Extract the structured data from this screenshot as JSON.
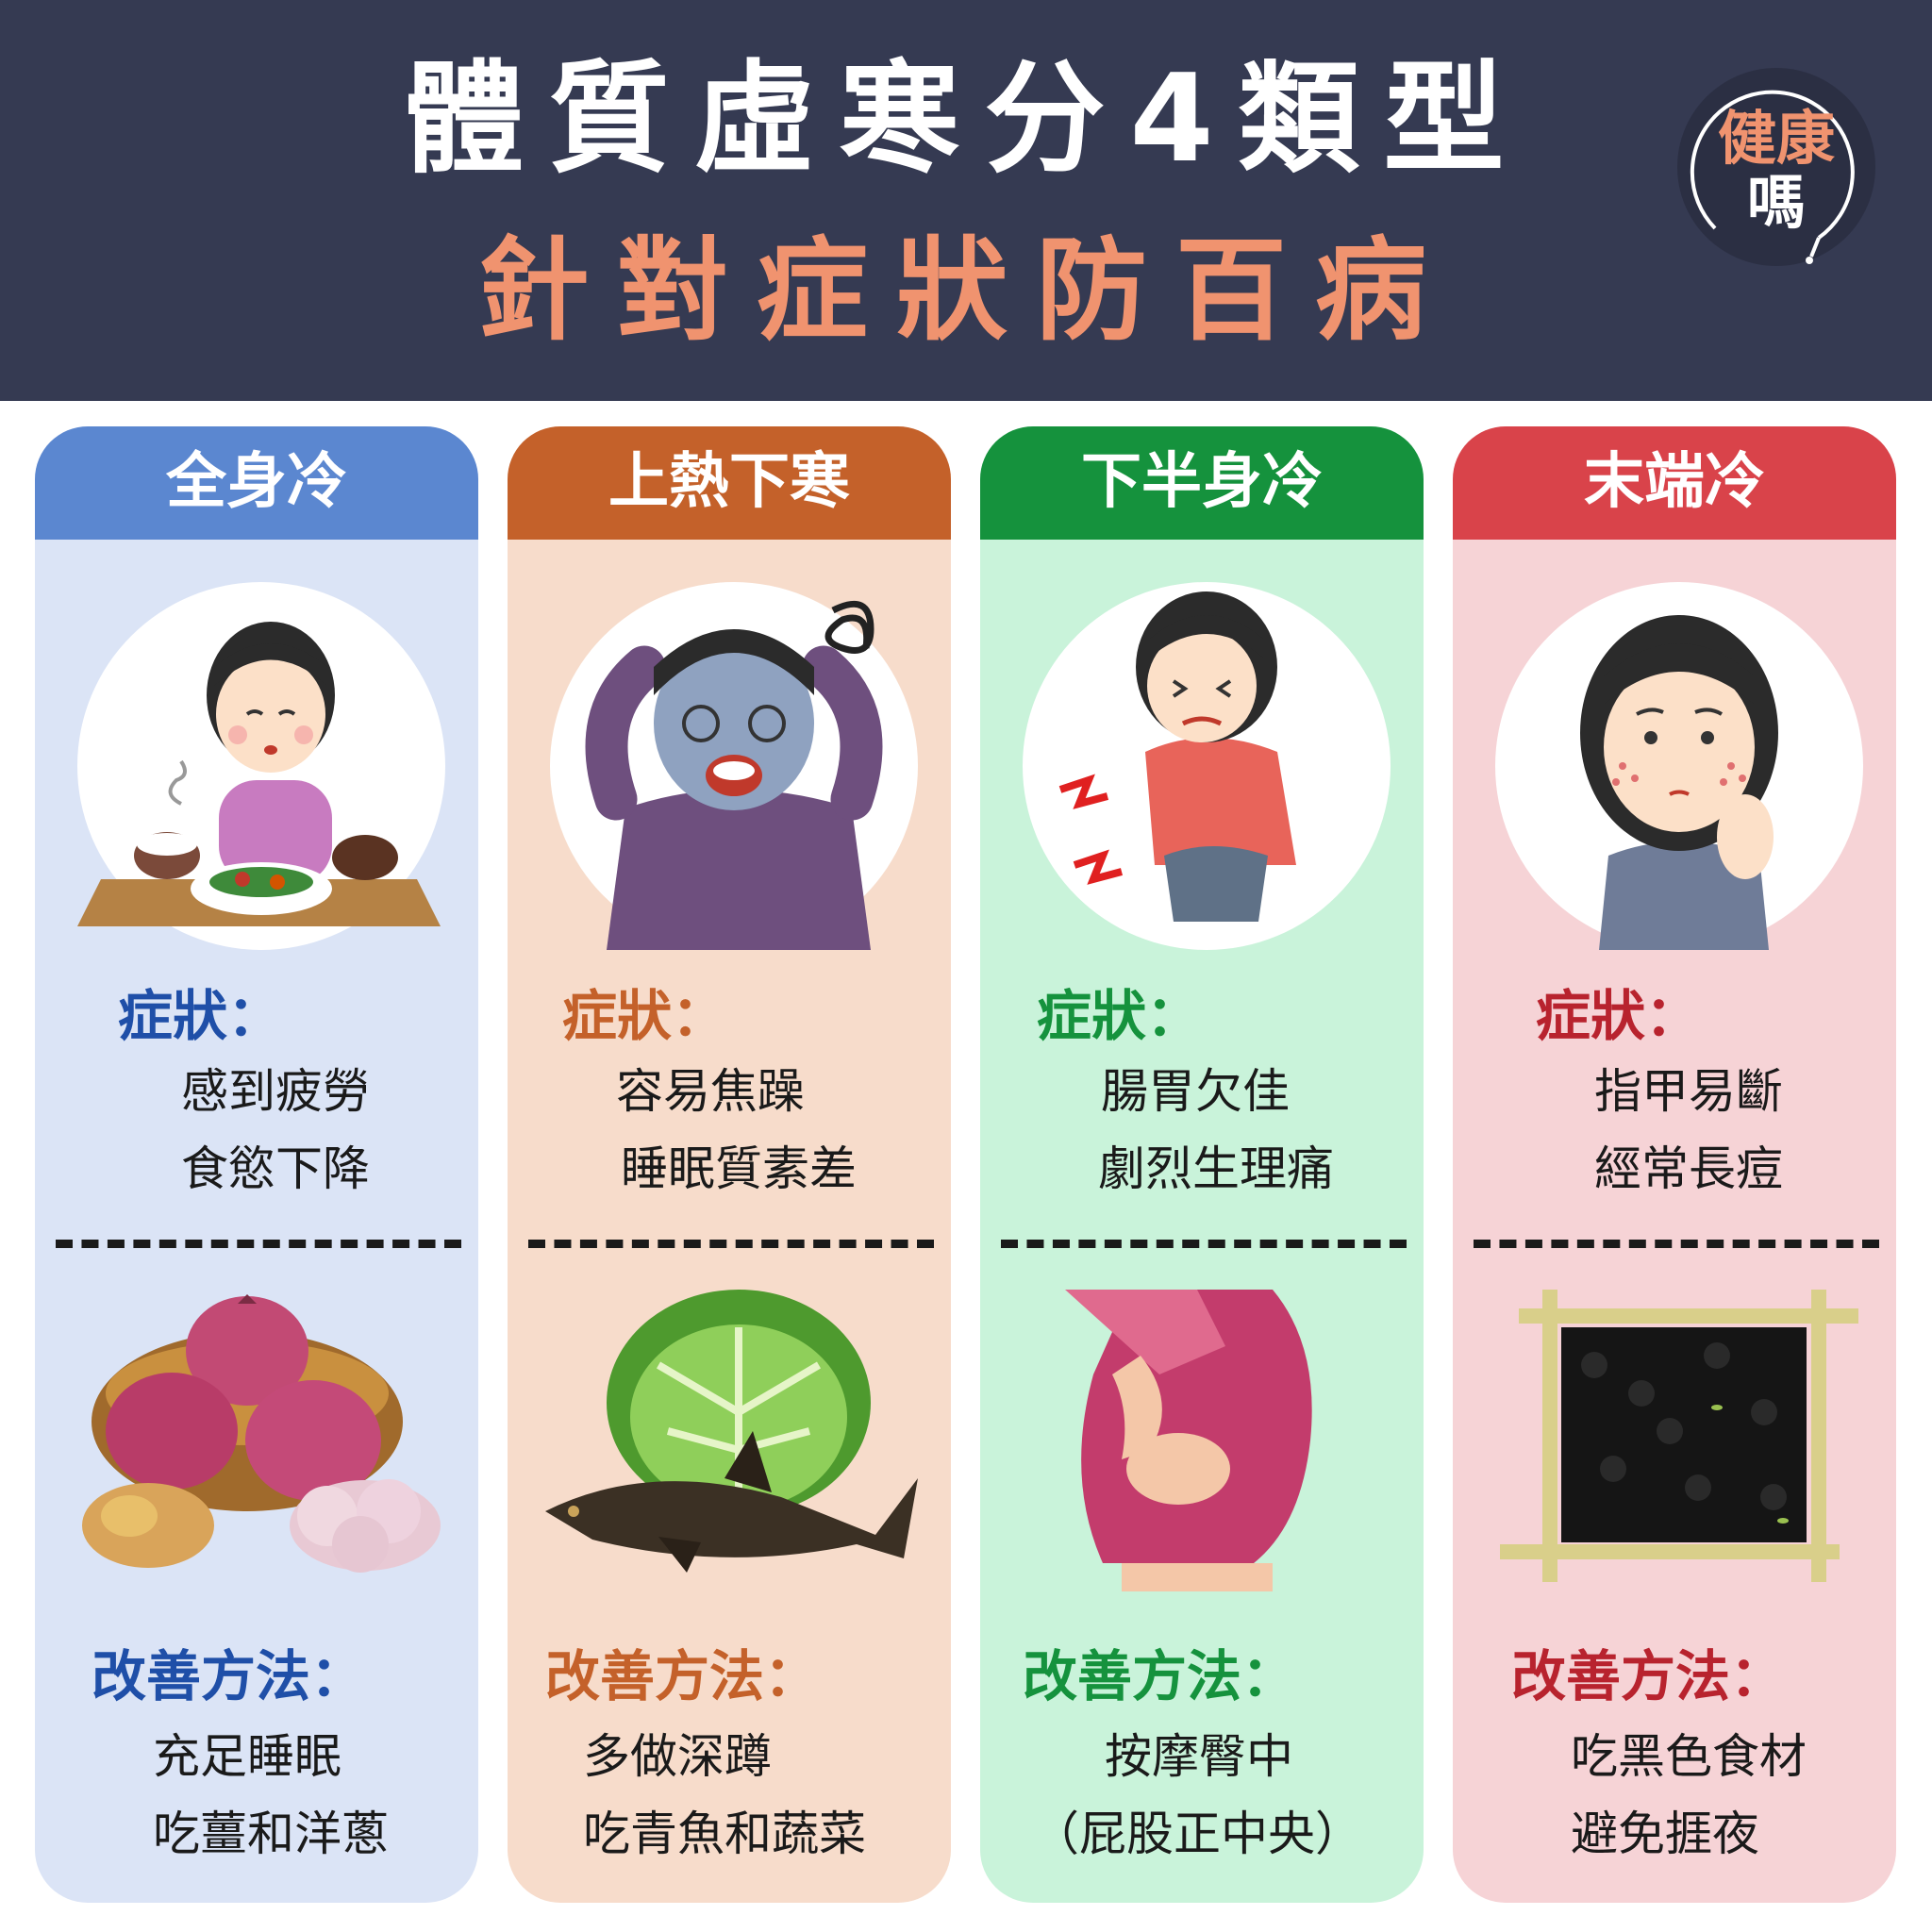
{
  "header": {
    "title": "體質虛寒分4類型",
    "subtitle": "針對症狀防百病",
    "logo_line1": "健康",
    "logo_line2": "嗎"
  },
  "colors": {
    "header_bg": "#353a52",
    "subtitle": "#f0936f"
  },
  "cards": [
    {
      "title": "全身冷",
      "header_color": "#5b87d0",
      "body_color": "#dbe4f6",
      "label_color": "#1f4fa8",
      "symptom_label": "症狀：",
      "symptoms": [
        "感到疲勞",
        "食慾下降"
      ],
      "remedy_label": "改善方法：",
      "remedies": [
        "充足睡眠",
        "吃薑和洋蔥"
      ],
      "illustration": "tired-woman-at-table-icon",
      "food": "onion-ginger-garlic-icon"
    },
    {
      "title": "上熱下寒",
      "header_color": "#c4612a",
      "body_color": "#f7dccb",
      "label_color": "#c4612a",
      "symptom_label": "症狀：",
      "symptoms": [
        "容易焦躁",
        "睡眠質素差"
      ],
      "remedy_label": "改善方法：",
      "remedies": [
        "多做深蹲",
        "吃青魚和蔬菜"
      ],
      "illustration": "stressed-person-icon",
      "food": "cabbage-fish-icon"
    },
    {
      "title": "下半身冷",
      "header_color": "#15923d",
      "body_color": "#c9f3da",
      "label_color": "#15923d",
      "symptom_label": "症狀：",
      "symptoms": [
        "腸胃欠佳",
        "劇烈生理痛"
      ],
      "remedy_label": "改善方法：",
      "remedies": [
        "按摩臀中",
        "（屁股正中央）"
      ],
      "illustration": "stomach-pain-woman-icon",
      "food": "hip-massage-icon"
    },
    {
      "title": "末端冷",
      "header_color": "#d9434a",
      "body_color": "#f6d3d6",
      "label_color": "#b8232e",
      "symptom_label": "症狀：",
      "symptoms": [
        "指甲易斷",
        "經常長痘"
      ],
      "remedy_label": "改善方法：",
      "remedies": [
        "吃黑色食材",
        "避免捱夜"
      ],
      "illustration": "acne-woman-icon",
      "food": "black-beans-rice-icon"
    }
  ]
}
